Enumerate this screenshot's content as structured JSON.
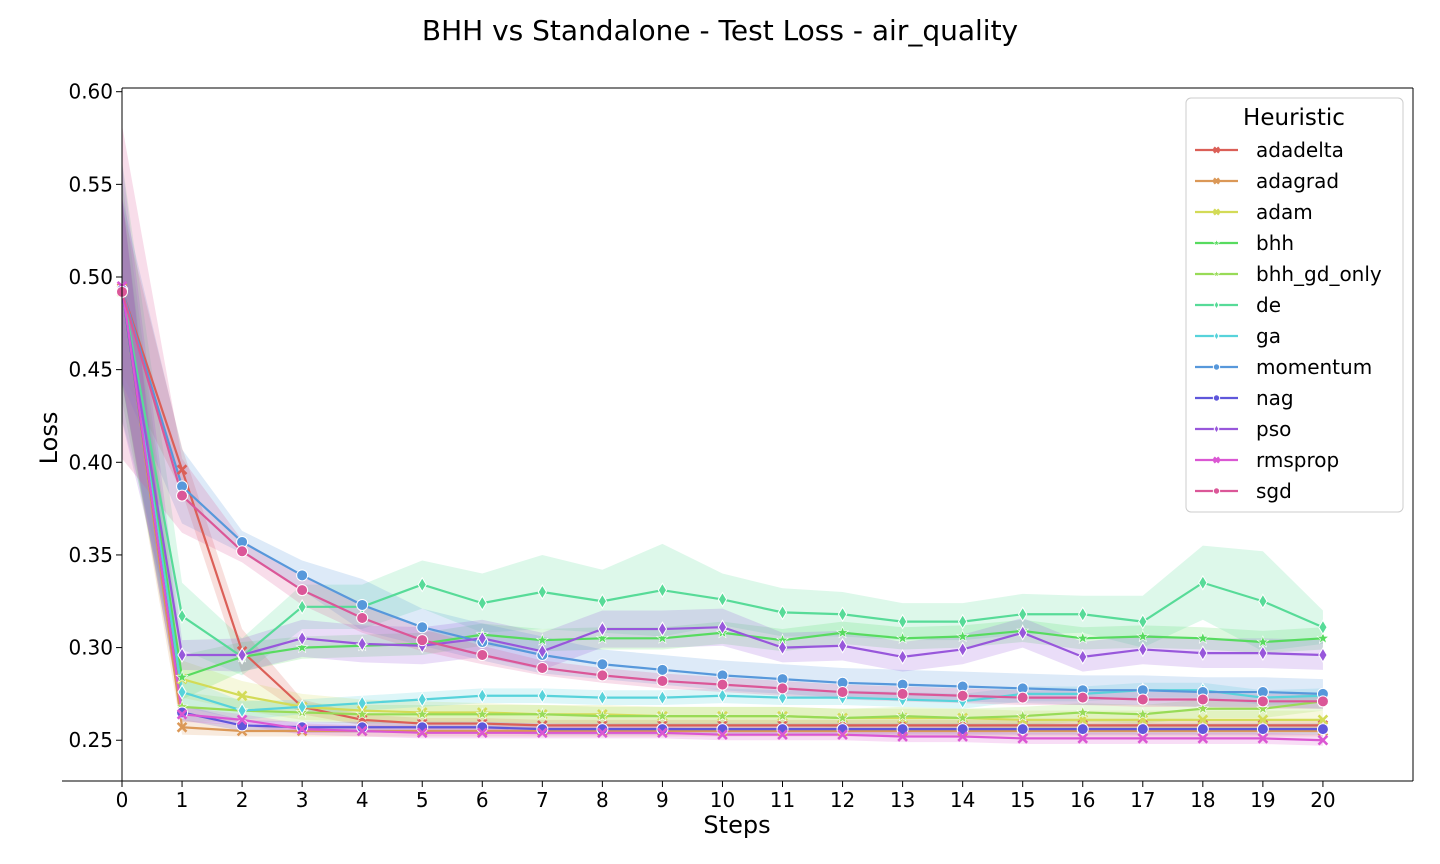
{
  "chart_data": {
    "type": "line",
    "title": "BHH vs Standalone - Test Loss - air_quality",
    "xlabel": "Steps",
    "ylabel": "Loss",
    "x": [
      0,
      1,
      2,
      3,
      4,
      5,
      6,
      7,
      8,
      9,
      10,
      11,
      12,
      13,
      14,
      15,
      16,
      17,
      18,
      19,
      20
    ],
    "xlim": [
      0,
      21.5
    ],
    "ylim": [
      0.228,
      0.602
    ],
    "yticks": [
      0.25,
      0.3,
      0.35,
      0.4,
      0.45,
      0.5,
      0.55,
      0.6
    ],
    "ytick_labels": [
      "0.25",
      "0.30",
      "0.35",
      "0.40",
      "0.45",
      "0.50",
      "0.55",
      "0.60"
    ],
    "xtick_labels": [
      "0",
      "1",
      "2",
      "3",
      "4",
      "5",
      "6",
      "7",
      "8",
      "9",
      "10",
      "11",
      "12",
      "13",
      "14",
      "15",
      "16",
      "17",
      "18",
      "19",
      "20"
    ],
    "legend": {
      "title": "Heuristic",
      "position": "top-right"
    },
    "series": [
      {
        "name": "adadelta",
        "color": "#db5f57",
        "marker": "x",
        "values": [
          0.493,
          0.396,
          0.298,
          0.268,
          0.261,
          0.259,
          0.259,
          0.258,
          0.258,
          0.258,
          0.258,
          0.258,
          0.258,
          0.258,
          0.258,
          0.258,
          0.258,
          0.258,
          0.258,
          0.258,
          0.258
        ],
        "band": [
          0.045,
          0.012,
          0.012,
          0.004,
          0.003,
          0.003,
          0.003,
          0.003,
          0.003,
          0.003,
          0.003,
          0.003,
          0.003,
          0.003,
          0.003,
          0.003,
          0.003,
          0.003,
          0.003,
          0.003,
          0.003
        ]
      },
      {
        "name": "adagrad",
        "color": "#db9857",
        "marker": "x",
        "values": [
          0.494,
          0.257,
          0.255,
          0.255,
          0.255,
          0.255,
          0.255,
          0.255,
          0.255,
          0.255,
          0.255,
          0.255,
          0.255,
          0.255,
          0.255,
          0.255,
          0.255,
          0.255,
          0.255,
          0.255,
          0.255
        ],
        "band": [
          0.05,
          0.004,
          0.003,
          0.003,
          0.003,
          0.003,
          0.003,
          0.003,
          0.003,
          0.003,
          0.003,
          0.003,
          0.003,
          0.003,
          0.003,
          0.003,
          0.003,
          0.003,
          0.003,
          0.003,
          0.003
        ]
      },
      {
        "name": "adam",
        "color": "#d3db57",
        "marker": "x",
        "values": [
          0.492,
          0.283,
          0.274,
          0.268,
          0.266,
          0.265,
          0.265,
          0.264,
          0.264,
          0.263,
          0.263,
          0.263,
          0.262,
          0.262,
          0.262,
          0.261,
          0.261,
          0.261,
          0.261,
          0.261,
          0.261
        ],
        "band": [
          0.05,
          0.01,
          0.008,
          0.007,
          0.006,
          0.006,
          0.005,
          0.005,
          0.005,
          0.005,
          0.005,
          0.005,
          0.005,
          0.005,
          0.005,
          0.005,
          0.005,
          0.005,
          0.005,
          0.005,
          0.005
        ]
      },
      {
        "name": "bhh",
        "color": "#57db5f",
        "marker": "star",
        "values": [
          0.493,
          0.284,
          0.295,
          0.3,
          0.301,
          0.302,
          0.307,
          0.304,
          0.305,
          0.305,
          0.308,
          0.304,
          0.308,
          0.305,
          0.306,
          0.309,
          0.305,
          0.306,
          0.305,
          0.303,
          0.305
        ],
        "band": [
          0.06,
          0.012,
          0.008,
          0.006,
          0.006,
          0.006,
          0.006,
          0.006,
          0.006,
          0.006,
          0.006,
          0.006,
          0.006,
          0.006,
          0.006,
          0.006,
          0.006,
          0.006,
          0.006,
          0.006,
          0.006
        ]
      },
      {
        "name": "bhh_gd_only",
        "color": "#98db57",
        "marker": "star",
        "values": [
          0.492,
          0.268,
          0.266,
          0.265,
          0.264,
          0.264,
          0.264,
          0.264,
          0.263,
          0.263,
          0.263,
          0.263,
          0.262,
          0.263,
          0.262,
          0.263,
          0.265,
          0.264,
          0.267,
          0.267,
          0.271
        ],
        "band": [
          0.05,
          0.008,
          0.006,
          0.005,
          0.005,
          0.005,
          0.005,
          0.005,
          0.005,
          0.005,
          0.005,
          0.005,
          0.005,
          0.005,
          0.005,
          0.005,
          0.005,
          0.005,
          0.005,
          0.005,
          0.005
        ]
      },
      {
        "name": "de",
        "color": "#57db98",
        "marker": "diamond",
        "values": [
          0.493,
          0.317,
          0.295,
          0.322,
          0.322,
          0.334,
          0.324,
          0.33,
          0.325,
          0.331,
          0.326,
          0.319,
          0.318,
          0.314,
          0.314,
          0.318,
          0.318,
          0.314,
          0.335,
          0.325,
          0.311
        ],
        "band": [
          0.07,
          0.018,
          0.01,
          0.012,
          0.012,
          0.013,
          0.016,
          0.02,
          0.017,
          0.025,
          0.014,
          0.013,
          0.012,
          0.01,
          0.01,
          0.011,
          0.01,
          0.014,
          0.02,
          0.027,
          0.009
        ]
      },
      {
        "name": "ga",
        "color": "#57d3db",
        "marker": "diamond",
        "values": [
          0.493,
          0.276,
          0.266,
          0.268,
          0.27,
          0.272,
          0.274,
          0.274,
          0.273,
          0.273,
          0.274,
          0.273,
          0.273,
          0.272,
          0.271,
          0.275,
          0.275,
          0.277,
          0.277,
          0.273,
          0.274
        ],
        "band": [
          0.05,
          0.008,
          0.005,
          0.004,
          0.004,
          0.004,
          0.004,
          0.004,
          0.004,
          0.004,
          0.004,
          0.004,
          0.004,
          0.004,
          0.004,
          0.004,
          0.004,
          0.004,
          0.004,
          0.004,
          0.004
        ]
      },
      {
        "name": "momentum",
        "color": "#5798db",
        "marker": "circle",
        "values": [
          0.493,
          0.387,
          0.357,
          0.339,
          0.323,
          0.311,
          0.303,
          0.296,
          0.291,
          0.288,
          0.285,
          0.283,
          0.281,
          0.28,
          0.279,
          0.278,
          0.277,
          0.277,
          0.276,
          0.276,
          0.275
        ],
        "band": [
          0.05,
          0.02,
          0.006,
          0.008,
          0.014,
          0.01,
          0.01,
          0.01,
          0.008,
          0.008,
          0.008,
          0.008,
          0.008,
          0.008,
          0.008,
          0.008,
          0.008,
          0.008,
          0.008,
          0.008,
          0.008
        ]
      },
      {
        "name": "nag",
        "color": "#5f57db",
        "marker": "circle",
        "values": [
          0.493,
          0.265,
          0.258,
          0.257,
          0.257,
          0.257,
          0.257,
          0.256,
          0.256,
          0.256,
          0.256,
          0.256,
          0.256,
          0.256,
          0.256,
          0.256,
          0.256,
          0.256,
          0.256,
          0.256,
          0.256
        ],
        "band": [
          0.05,
          0.004,
          0.003,
          0.003,
          0.003,
          0.003,
          0.003,
          0.003,
          0.003,
          0.003,
          0.003,
          0.003,
          0.003,
          0.003,
          0.003,
          0.003,
          0.003,
          0.003,
          0.003,
          0.003,
          0.003
        ]
      },
      {
        "name": "pso",
        "color": "#9857db",
        "marker": "diamond",
        "values": [
          0.492,
          0.296,
          0.296,
          0.305,
          0.302,
          0.301,
          0.305,
          0.298,
          0.31,
          0.31,
          0.311,
          0.3,
          0.301,
          0.295,
          0.299,
          0.308,
          0.295,
          0.299,
          0.297,
          0.297,
          0.296
        ],
        "band": [
          0.07,
          0.008,
          0.009,
          0.01,
          0.01,
          0.01,
          0.01,
          0.01,
          0.01,
          0.01,
          0.01,
          0.008,
          0.008,
          0.008,
          0.008,
          0.008,
          0.008,
          0.008,
          0.008,
          0.008,
          0.008
        ]
      },
      {
        "name": "rmsprop",
        "color": "#db57d3",
        "marker": "x",
        "values": [
          0.495,
          0.264,
          0.261,
          0.256,
          0.255,
          0.254,
          0.254,
          0.254,
          0.254,
          0.254,
          0.253,
          0.253,
          0.253,
          0.252,
          0.252,
          0.251,
          0.251,
          0.251,
          0.251,
          0.251,
          0.25
        ],
        "band": [
          0.05,
          0.004,
          0.003,
          0.003,
          0.003,
          0.003,
          0.003,
          0.003,
          0.003,
          0.003,
          0.003,
          0.003,
          0.003,
          0.003,
          0.003,
          0.003,
          0.003,
          0.003,
          0.003,
          0.003,
          0.003
        ]
      },
      {
        "name": "sgd",
        "color": "#db5798",
        "marker": "circle",
        "values": [
          0.492,
          0.382,
          0.352,
          0.331,
          0.316,
          0.304,
          0.296,
          0.289,
          0.285,
          0.282,
          0.28,
          0.278,
          0.276,
          0.275,
          0.274,
          0.273,
          0.273,
          0.272,
          0.272,
          0.271,
          0.271
        ],
        "band": [
          0.09,
          0.02,
          0.006,
          0.008,
          0.008,
          0.006,
          0.005,
          0.004,
          0.004,
          0.004,
          0.004,
          0.004,
          0.004,
          0.004,
          0.004,
          0.004,
          0.004,
          0.004,
          0.004,
          0.004,
          0.004
        ]
      }
    ]
  }
}
